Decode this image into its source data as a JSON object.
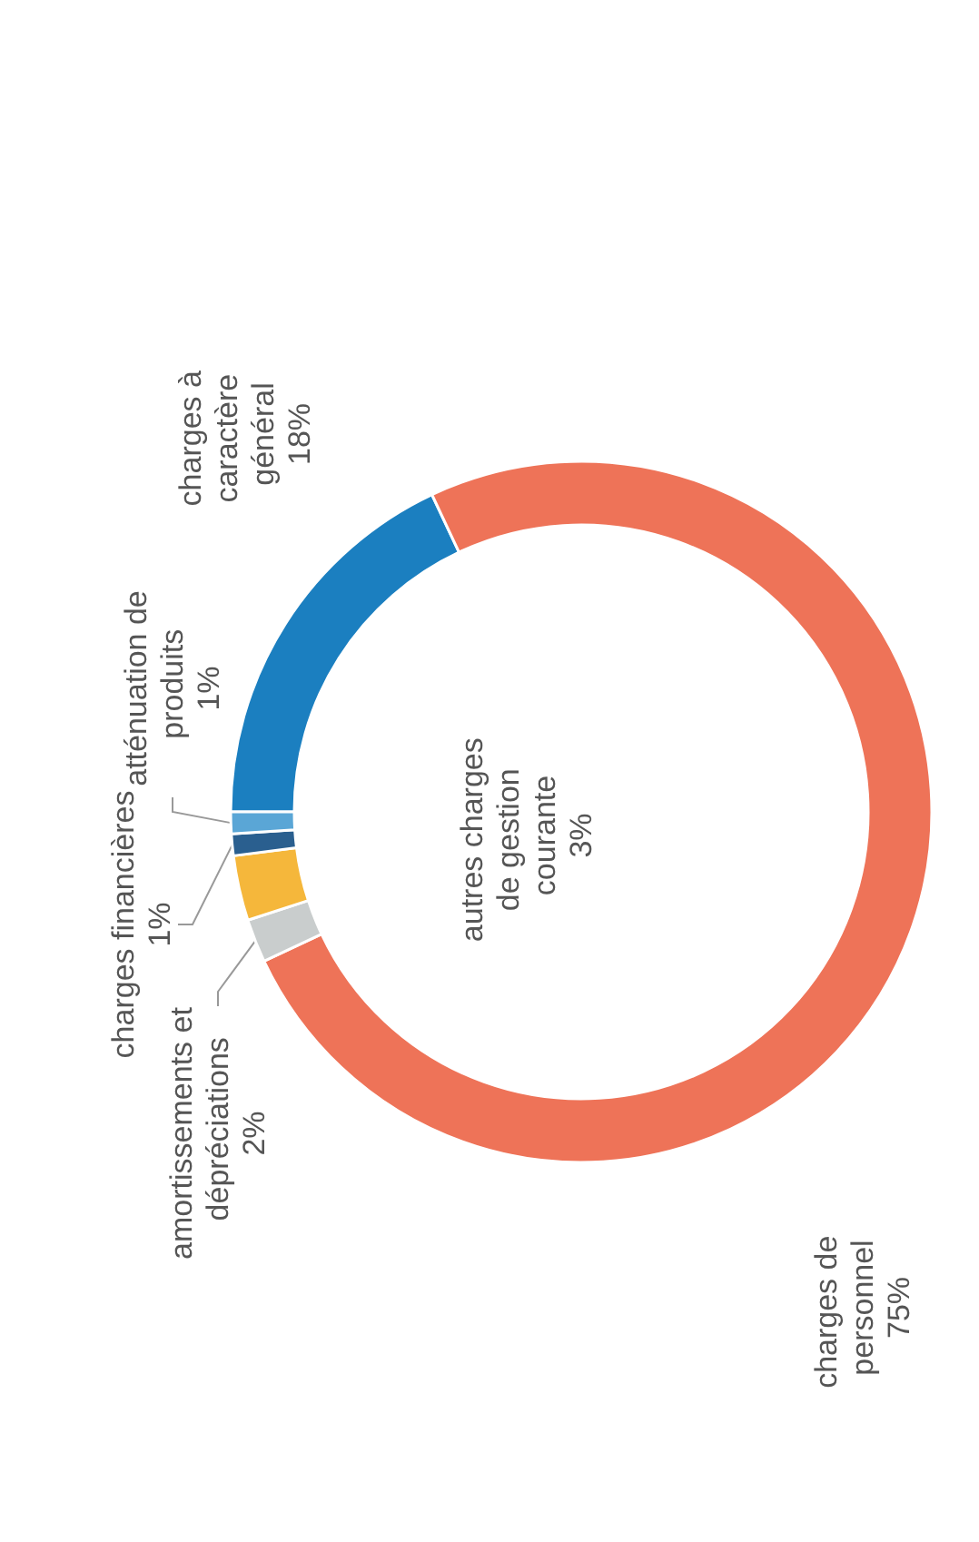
{
  "chart_data": {
    "type": "donut",
    "categories": [
      "charges à caractère général",
      "charges de personnel",
      "amortissements et dépréciations",
      "autres charges de gestion courante",
      "charges financières",
      "atténuation de produits"
    ],
    "values": [
      18,
      75,
      2,
      3,
      1,
      1
    ],
    "value_labels": [
      "18%",
      "75%",
      "2%",
      "3%",
      "1%",
      "1%"
    ],
    "colors": [
      "#1b7fc0",
      "#ee7358",
      "#c9cdcd",
      "#f5b73b",
      "#2a5f8f",
      "#5aa6d6"
    ],
    "legend": false
  }
}
